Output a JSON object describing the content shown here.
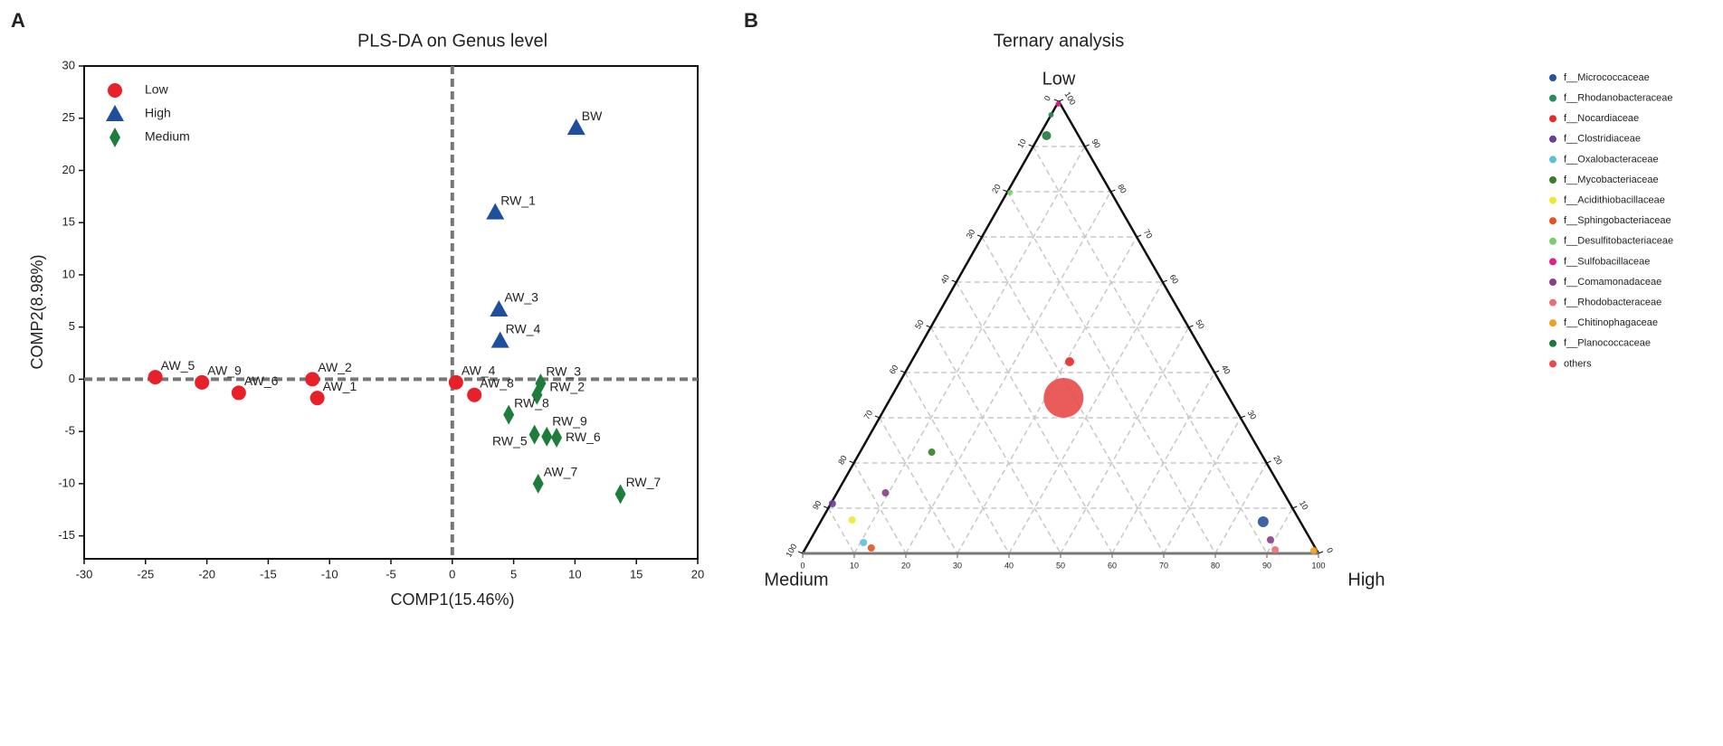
{
  "chart_data": [
    {
      "type": "scatter",
      "panel": "A",
      "title": "PLS-DA on Genus level",
      "x_label": "COMP1(15.46%)",
      "y_label": "COMP2(8.98%)",
      "xlim": [
        -30,
        20
      ],
      "ylim": [
        -17.2,
        30
      ],
      "xticks": [
        -30,
        -25,
        -20,
        -15,
        -10,
        -5,
        0,
        5,
        10,
        15,
        20
      ],
      "yticks": [
        -15,
        -10,
        -5,
        0,
        5,
        10,
        15,
        20,
        25,
        30
      ],
      "reference_lines": {
        "x": 0,
        "y": 0
      },
      "legend": "upper left",
      "series": [
        {
          "name": "Low",
          "color": "#e8202a",
          "marker": "circle",
          "labels": [
            "AW_5",
            "AW_9",
            "AW_6",
            "AW_2",
            "AW_1",
            "AW_4",
            "AW_8"
          ],
          "x": [
            -24.2,
            -20.4,
            -17.4,
            -11.4,
            -11.0,
            0.3,
            1.8
          ],
          "y": [
            0.2,
            -0.3,
            -1.3,
            0,
            -1.8,
            -0.3,
            -1.5
          ]
        },
        {
          "name": "High",
          "color": "#1f4e9c",
          "marker": "triangle",
          "labels": [
            "BW",
            "RW_1",
            "AW_3",
            "RW_4"
          ],
          "x": [
            10.1,
            3.5,
            3.8,
            3.9
          ],
          "y": [
            24.1,
            16.0,
            6.7,
            3.7
          ]
        },
        {
          "name": "Medium",
          "color": "#1e7d3a",
          "marker": "diamond",
          "labels": [
            "RW_3",
            "RW_2",
            "RW_8",
            "RW_5",
            "RW_9",
            "RW_6",
            "AW_7",
            "RW_7"
          ],
          "x": [
            7.2,
            6.9,
            4.6,
            6.7,
            7.7,
            8.5,
            7.0,
            13.7
          ],
          "y": [
            -0.4,
            -1.5,
            -3.4,
            -5.3,
            -5.5,
            -5.6,
            -10.0,
            -11.0
          ]
        }
      ]
    },
    {
      "type": "ternary",
      "panel": "B",
      "title": "Ternary analysis",
      "axes": [
        "Low",
        "Medium",
        "High"
      ],
      "ticks": [
        0,
        10,
        20,
        30,
        40,
        50,
        60,
        70,
        80,
        90,
        100
      ],
      "grid": true,
      "legend": "upper right",
      "series": [
        {
          "name": "f__Micrococcaceae",
          "color": "#2a52a0",
          "size": 6,
          "values": [
            [
              7,
              7.2,
              85.8
            ]
          ]
        },
        {
          "name": "f__Rhodanobacteraceae",
          "color": "#2a8a60",
          "size": 3,
          "values": [
            [
              97,
              3,
              0
            ]
          ]
        },
        {
          "name": "f__Nocardiaceae",
          "color": "#e82828",
          "size": 5,
          "values": [
            [
              42.4,
              26.9,
              30.7
            ]
          ]
        },
        {
          "name": "f__Clostridiaceae",
          "color": "#6a3d9a",
          "size": 4,
          "values": [
            [
              11,
              88.7,
              0.3
            ]
          ]
        },
        {
          "name": "f__Oxalobacteraceae",
          "color": "#5bc0de",
          "size": 4,
          "values": [
            [
              2.4,
              87,
              10.6
            ]
          ]
        },
        {
          "name": "f__Mycobacteriaceae",
          "color": "#3a7d2a",
          "size": 4,
          "values": [
            [
              22.4,
              63.7,
              13.9
            ]
          ]
        },
        {
          "name": "f__Acidithiobacillaceae",
          "color": "#f0e830",
          "size": 4,
          "values": [
            [
              7.4,
              86.7,
              5.9
            ]
          ]
        },
        {
          "name": "f__Sphingobacteriaceae",
          "color": "#e8501e",
          "size": 4,
          "values": [
            [
              1.2,
              86.1,
              12.7
            ]
          ]
        },
        {
          "name": "f__Desulfitobacteriaceae",
          "color": "#7ccd6a",
          "size": 3,
          "values": [
            [
              79.8,
              19.6,
              0.6
            ]
          ]
        },
        {
          "name": "f__Sulfobacillaceae",
          "color": "#e0208a",
          "size": 3,
          "values": [
            [
              99.4,
              0.4,
              0.2
            ]
          ]
        },
        {
          "name": "f__Comamonadaceae",
          "color": "#8a3d8a",
          "size": 4,
          "values": [
            [
              13.4,
              77.2,
              9.4
            ],
            [
              3,
              7.8,
              89.2
            ]
          ]
        },
        {
          "name": "f__Rhodobacteraceae",
          "color": "#e87070",
          "size": 4,
          "values": [
            [
              0.8,
              8,
              91.2
            ]
          ]
        },
        {
          "name": "f__Chitinophagaceae",
          "color": "#f0a020",
          "size": 4,
          "values": [
            [
              0.6,
              0.6,
              98.8
            ]
          ]
        },
        {
          "name": "f__Planococcaceae",
          "color": "#1e7a3a",
          "size": 5,
          "values": [
            [
              92.4,
              6.2,
              1.4
            ]
          ]
        },
        {
          "name": "others",
          "color": "#e84a4a",
          "size": 22,
          "values": [
            [
              34.4,
              32.1,
              33.5
            ]
          ]
        }
      ]
    }
  ]
}
